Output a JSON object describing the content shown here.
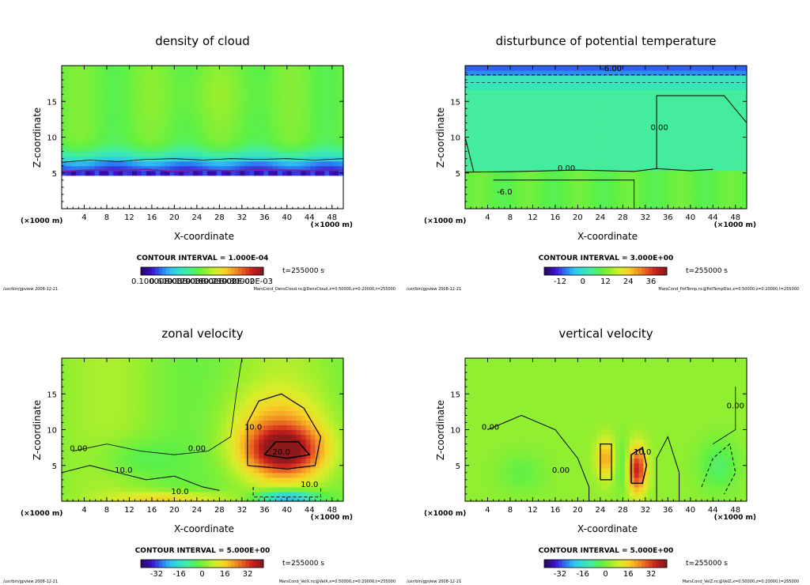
{
  "colors": {
    "background": "#ffffff",
    "axis": "#000000"
  },
  "chart_data": [
    {
      "type": "heatmap",
      "title": "density of cloud",
      "xlabel": "X-coordinate",
      "ylabel": "Z-coordinate",
      "xunit": "(×1000 m)",
      "xlim": [
        0,
        50
      ],
      "ylim": [
        0,
        20
      ],
      "xticks": [
        "4",
        "8",
        "12",
        "16",
        "20",
        "24",
        "28",
        "32",
        "36",
        "40",
        "44",
        "48"
      ],
      "yticks": [
        "5",
        "10",
        "15"
      ],
      "contour_interval": "CONTOUR INTERVAL = 1.000E-04",
      "time": "t=255000 s",
      "colorbar_labels": [
        "0.10000E-03",
        "0.60000E-03",
        "0.12000E-02",
        "0.18000E-02",
        "0.23000E-02",
        "0.30000E-03"
      ],
      "footer_left": "/usr/bin/gpview   2008-12-21",
      "footer_right": "MarsCond_DensCloud.nc@DensCloud,x=0:50000,z=0:20000,t=255000",
      "contour_labels": []
    },
    {
      "type": "heatmap",
      "title": "disturbunce of potential temperature",
      "xlabel": "X-coordinate",
      "ylabel": "Z-coordinate",
      "xunit": "(×1000 m)",
      "xlim": [
        0,
        50
      ],
      "ylim": [
        0,
        20
      ],
      "xticks": [
        "4",
        "8",
        "12",
        "16",
        "20",
        "24",
        "28",
        "32",
        "36",
        "40",
        "44",
        "48"
      ],
      "yticks": [
        "5",
        "10",
        "15"
      ],
      "contour_interval": "CONTOUR INTERVAL = 3.000E+00",
      "time": "t=255000 s",
      "colorbar_labels": [
        "-12",
        "0",
        "12",
        "24",
        "36"
      ],
      "footer_left": "/usr/bin/gpview   2008-12-21",
      "footer_right": "MarsCond_PotTemp.nc@PotTempDist,x=0:50000,z=0:20000,t=255000",
      "contour_labels": [
        {
          "text": "-6.00",
          "x": 26,
          "z": 19.2
        },
        {
          "text": "0.00",
          "x": 18,
          "z": 5.3
        },
        {
          "text": "0.00",
          "x": 34.5,
          "z": 11
        },
        {
          "text": "-6.0",
          "x": 7,
          "z": 2
        }
      ]
    },
    {
      "type": "heatmap",
      "title": "zonal velocity",
      "xlabel": "X-coordinate",
      "ylabel": "Z-coordinate",
      "xunit": "(×1000 m)",
      "xlim": [
        0,
        50
      ],
      "ylim": [
        0,
        20
      ],
      "xticks": [
        "4",
        "8",
        "12",
        "16",
        "20",
        "24",
        "28",
        "32",
        "36",
        "40",
        "44",
        "48"
      ],
      "yticks": [
        "5",
        "10",
        "15"
      ],
      "contour_interval": "CONTOUR INTERVAL = 5.000E+00",
      "time": "t=255000 s",
      "colorbar_labels": [
        "-32",
        "-16",
        "0",
        "16",
        "32"
      ],
      "footer_left": "/usr/bin/gpview   2008-12-21",
      "footer_right": "MarsCond_VelX.nc@VelX,x=0:50000,z=0:20000,t=255000",
      "contour_labels": [
        {
          "text": "0.00",
          "x": 3,
          "z": 7
        },
        {
          "text": "10.0",
          "x": 11,
          "z": 4
        },
        {
          "text": "20.0",
          "x": 39,
          "z": 6.5
        },
        {
          "text": "10.0",
          "x": 34,
          "z": 10
        },
        {
          "text": "10.0",
          "x": 21,
          "z": 1
        },
        {
          "text": "10.0",
          "x": 44,
          "z": 2
        },
        {
          "text": "0.00",
          "x": 24,
          "z": 7
        }
      ]
    },
    {
      "type": "heatmap",
      "title": "vertical velocity",
      "xlabel": "X-coordinate",
      "ylabel": "Z-coordinate",
      "xunit": "(×1000 m)",
      "xlim": [
        0,
        50
      ],
      "ylim": [
        0,
        20
      ],
      "xticks": [
        "4",
        "8",
        "12",
        "16",
        "20",
        "24",
        "28",
        "32",
        "36",
        "40",
        "44",
        "48"
      ],
      "yticks": [
        "5",
        "10",
        "15"
      ],
      "contour_interval": "CONTOUR INTERVAL = 5.000E+00",
      "time": "t=255000 s",
      "colorbar_labels": [
        "-32",
        "-16",
        "0",
        "16",
        "32"
      ],
      "footer_left": "/usr/bin/gpview   2008-12-21",
      "footer_right": "MarsCond_VelZ.nc@VelZ,x=0:50000,z=0:20000,t=255000",
      "contour_labels": [
        {
          "text": "0.00",
          "x": 4.5,
          "z": 10
        },
        {
          "text": "0.00",
          "x": 17,
          "z": 4
        },
        {
          "text": "10.0",
          "x": 31.5,
          "z": 6.5
        },
        {
          "text": "0.00",
          "x": 48,
          "z": 13
        }
      ]
    }
  ]
}
